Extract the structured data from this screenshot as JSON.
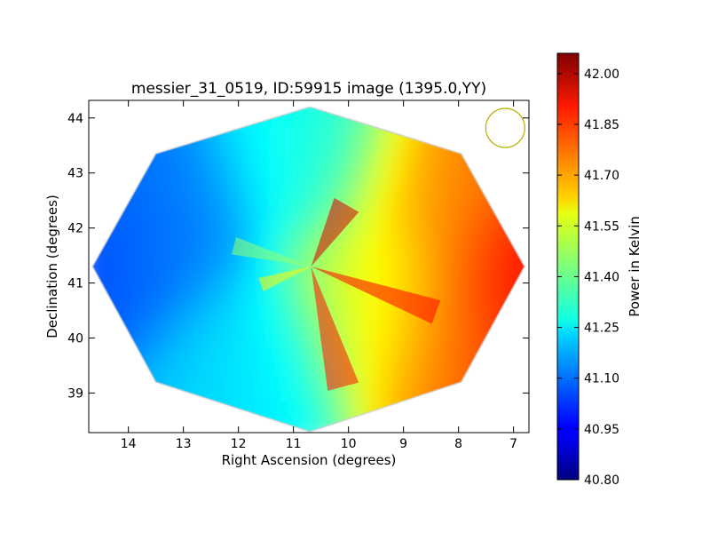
{
  "chart_data": {
    "type": "heatmap",
    "title": "messier_31_0519, ID:59915 image (1395.0,YY)",
    "xlabel": "Right Ascension (degrees)",
    "ylabel": "Declination (degrees)",
    "xlim": [
      14.72,
      6.72
    ],
    "ylim": [
      38.28,
      44.32
    ],
    "x_ticks": [
      "14",
      "13",
      "12",
      "11",
      "10",
      "9",
      "8",
      "7"
    ],
    "x_tick_values": [
      14,
      13,
      12,
      11,
      10,
      9,
      8,
      7
    ],
    "y_ticks": [
      "39",
      "40",
      "41",
      "42",
      "43",
      "44"
    ],
    "y_tick_values": [
      39,
      40,
      41,
      42,
      43,
      44
    ],
    "colorbar": {
      "label": "Power in Kelvin",
      "range": [
        40.8,
        42.06
      ],
      "ticks": [
        "40.80",
        "40.95",
        "41.10",
        "41.25",
        "41.40",
        "41.55",
        "41.70",
        "41.85",
        "42.00"
      ],
      "tick_values": [
        40.8,
        40.95,
        41.1,
        41.25,
        41.4,
        41.55,
        41.7,
        41.85,
        42.0
      ],
      "colormap": "jet"
    },
    "footprint": {
      "shape": "octagon",
      "vertices_radec": [
        [
          10.7,
          44.2
        ],
        [
          7.95,
          43.35
        ],
        [
          6.8,
          41.3
        ],
        [
          7.95,
          39.2
        ],
        [
          10.7,
          38.3
        ],
        [
          13.5,
          39.2
        ],
        [
          14.65,
          41.3
        ],
        [
          13.5,
          43.35
        ]
      ]
    },
    "center_radec": [
      10.68,
      41.3
    ],
    "field_values": {
      "description_note_free": true,
      "background": 41.5,
      "ra_gradient_per_deg": -0.06,
      "features": [
        {
          "ra": 14.2,
          "dec": 41.6,
          "value": 40.95
        },
        {
          "ra": 13.8,
          "dec": 42.6,
          "value": 41.0
        },
        {
          "ra": 12.2,
          "dec": 39.6,
          "value": 41.15
        },
        {
          "ra": 7.2,
          "dec": 40.9,
          "value": 42.0
        },
        {
          "ra": 8.2,
          "dec": 40.0,
          "value": 41.85
        },
        {
          "ra": 8.5,
          "dec": 42.8,
          "value": 41.78
        },
        {
          "ra": 9.6,
          "dec": 40.7,
          "value": 41.55
        },
        {
          "ra": 11.0,
          "dec": 43.5,
          "value": 41.2
        }
      ]
    },
    "beam": {
      "ra": 7.15,
      "dec": 43.82,
      "color": "#b8b000"
    }
  }
}
